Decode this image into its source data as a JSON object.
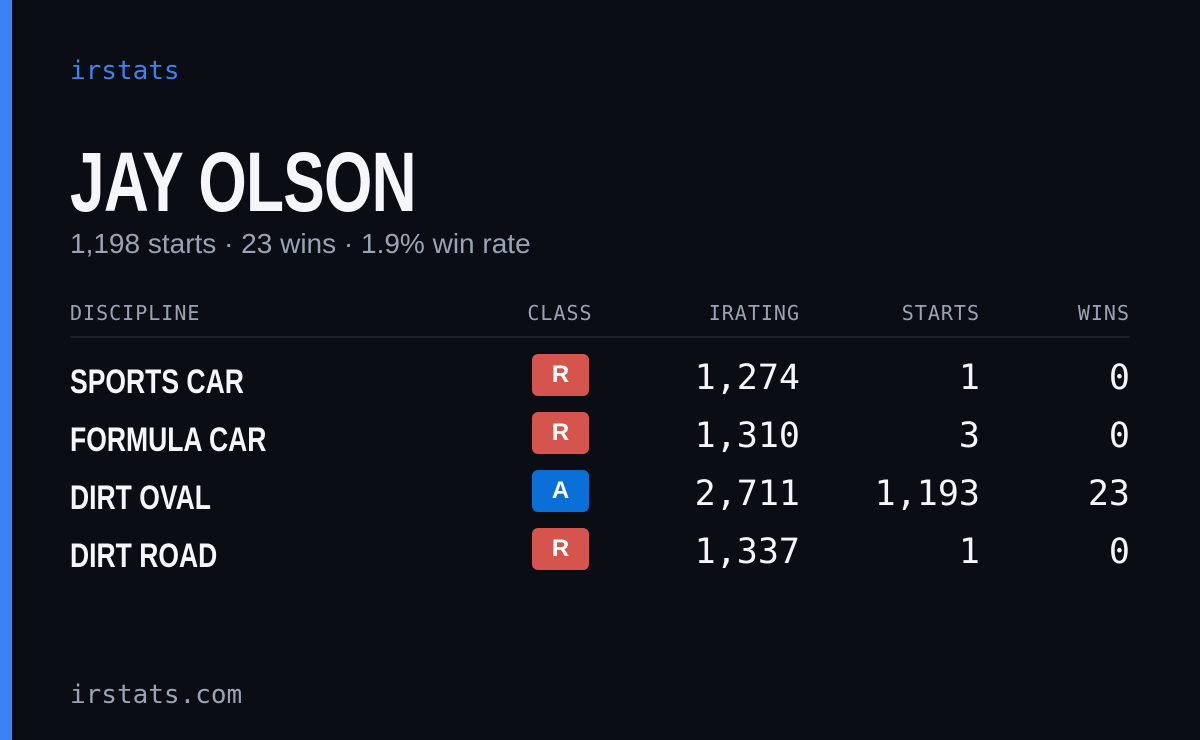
{
  "header": {
    "brand": "irstats",
    "name": "JAY OLSON",
    "subtitle": "1,198 starts · 23 wins · 1.9% win rate"
  },
  "table": {
    "columns": [
      "DISCIPLINE",
      "CLASS",
      "IRATING",
      "STARTS",
      "WINS"
    ],
    "rows": [
      [
        "SPORTS CAR",
        "R",
        "1,274",
        "1",
        "0"
      ],
      [
        "FORMULA CAR",
        "R",
        "1,310",
        "3",
        "0"
      ],
      [
        "DIRT OVAL",
        "A",
        "2,711",
        "1,193",
        "23"
      ],
      [
        "DIRT ROAD",
        "R",
        "1,337",
        "1",
        "0"
      ]
    ],
    "class_colors": {
      "R": "#d6544e",
      "A": "#0b6fd8"
    }
  },
  "footer": {
    "url": "irstats.com"
  }
}
